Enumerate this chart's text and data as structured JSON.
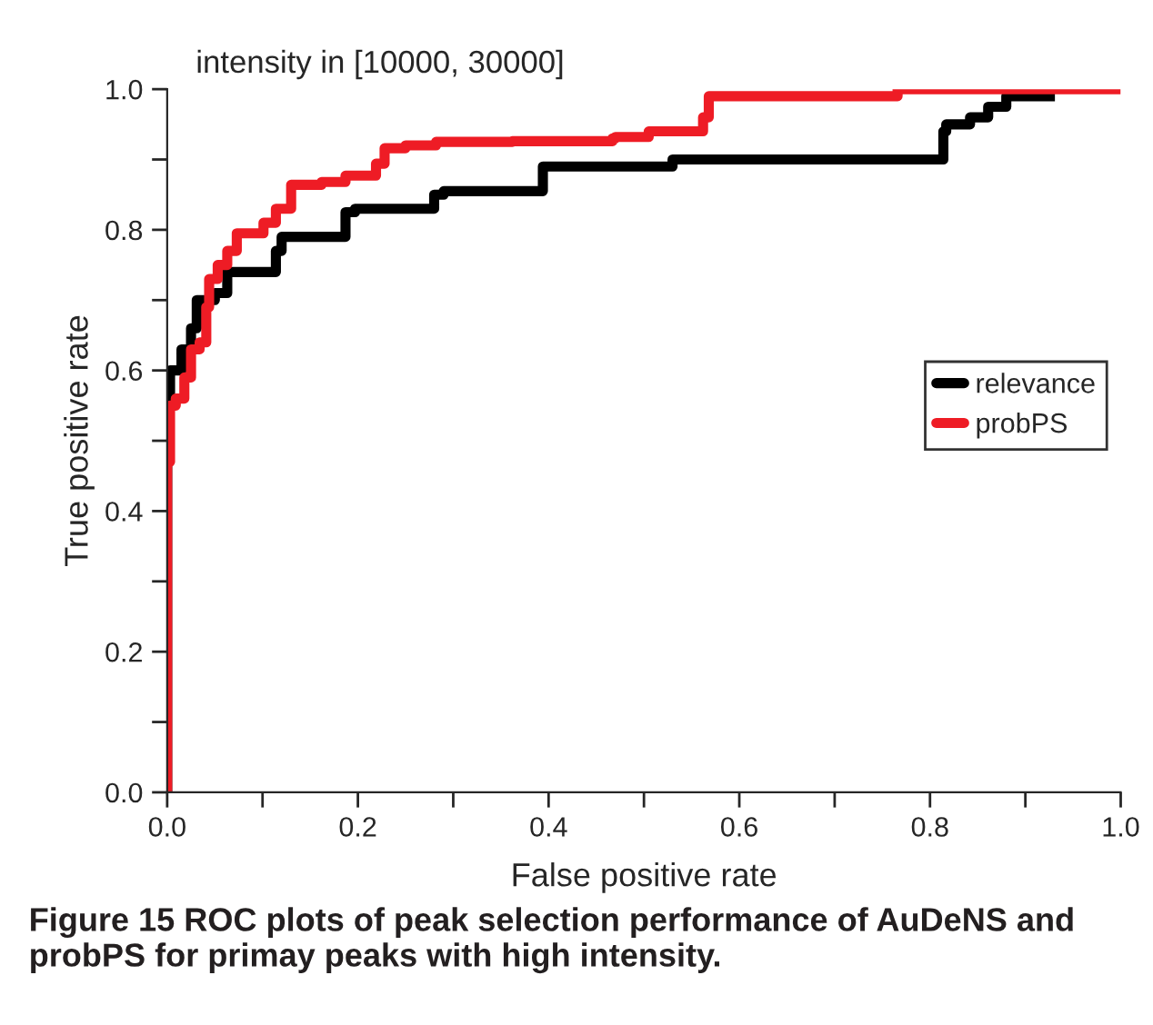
{
  "chart_data": {
    "type": "step",
    "title": "intensity in [10000, 30000]",
    "xlabel": "False positive rate",
    "ylabel": "True positive rate",
    "annotations": [
      "Figure 15 ROC plots of peak selection performance of AuDeNS and probPS for primay peaks with high intensity."
    ],
    "xlim": [
      0,
      1
    ],
    "ylim": [
      0,
      1
    ],
    "xticks": [
      {
        "value": 0,
        "label": "0.0"
      },
      {
        "value": 0.1,
        "label": null
      },
      {
        "value": 0.2,
        "label": "0.2"
      },
      {
        "value": 0.3,
        "label": null
      },
      {
        "value": 0.4,
        "label": "0.4"
      },
      {
        "value": 0.5,
        "label": null
      },
      {
        "value": 0.6,
        "label": "0.6"
      },
      {
        "value": 0.7,
        "label": null
      },
      {
        "value": 0.8,
        "label": "0.8"
      },
      {
        "value": 0.9,
        "label": null
      },
      {
        "value": 1,
        "label": "1.0"
      }
    ],
    "yticks": [
      {
        "value": 0,
        "label": "0.0"
      },
      {
        "value": 0.1,
        "label": null
      },
      {
        "value": 0.2,
        "label": "0.2"
      },
      {
        "value": 0.3,
        "label": null
      },
      {
        "value": 0.4,
        "label": "0.4"
      },
      {
        "value": 0.5,
        "label": null
      },
      {
        "value": 0.6,
        "label": "0.6"
      },
      {
        "value": 0.7,
        "label": null
      },
      {
        "value": 0.8,
        "label": "0.8"
      },
      {
        "value": 0.9,
        "label": null
      },
      {
        "value": 1,
        "label": "1.0"
      }
    ],
    "grid": false,
    "legend": "right",
    "series": [
      {
        "name": "relevance",
        "color": "#000000",
        "x": [
          0,
          0,
          0.003,
          0.015,
          0.025,
          0.031,
          0.038,
          0.05,
          0.063,
          0.076,
          0.114,
          0.12,
          0.14,
          0.187,
          0.197,
          0.28,
          0.29,
          0.394,
          0.41,
          0.53,
          0.67,
          0.814,
          0.817,
          0.842,
          0.861,
          0.88,
          0.893,
          0.931
        ],
        "values": [
          0,
          0.5,
          0.55,
          0.6,
          0.63,
          0.66,
          0.7,
          0.7,
          0.71,
          0.74,
          0.74,
          0.77,
          0.79,
          0.79,
          0.825,
          0.83,
          0.85,
          0.855,
          0.89,
          0.89,
          0.9,
          0.9,
          0.94,
          0.95,
          0.96,
          0.975,
          0.99,
          0.99
        ]
      },
      {
        "name": "probPS",
        "color": "#ee1c25",
        "x": [
          0,
          0,
          0.003,
          0.009,
          0.018,
          0.025,
          0.034,
          0.041,
          0.044,
          0.053,
          0.063,
          0.073,
          0.082,
          0.101,
          0.114,
          0.13,
          0.162,
          0.187,
          0.219,
          0.228,
          0.25,
          0.282,
          0.362,
          0.467,
          0.47,
          0.505,
          0.508,
          0.562,
          0.568,
          0.591,
          0.766,
          0.772,
          1.0
        ],
        "values": [
          0,
          0.45,
          0.47,
          0.55,
          0.56,
          0.59,
          0.63,
          0.64,
          0.69,
          0.73,
          0.75,
          0.77,
          0.795,
          0.795,
          0.81,
          0.83,
          0.864,
          0.868,
          0.877,
          0.894,
          0.916,
          0.92,
          0.925,
          0.926,
          0.93,
          0.932,
          0.94,
          0.94,
          0.96,
          0.99,
          0.99,
          1.0,
          1.0
        ]
      }
    ]
  }
}
